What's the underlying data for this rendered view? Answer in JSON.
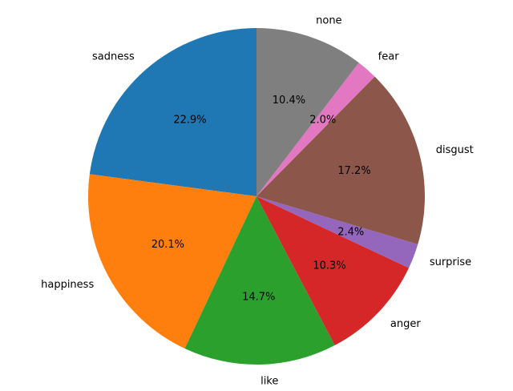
{
  "chart_data": {
    "type": "pie",
    "start_angle": 90,
    "direction": "counterclockwise",
    "slices": [
      {
        "label": "sadness",
        "value": 22.9,
        "pct_text": "22.9%",
        "color": "#1f77b4"
      },
      {
        "label": "happiness",
        "value": 20.1,
        "pct_text": "20.1%",
        "color": "#ff7f0e"
      },
      {
        "label": "like",
        "value": 14.7,
        "pct_text": "14.7%",
        "color": "#2ca02c"
      },
      {
        "label": "anger",
        "value": 10.3,
        "pct_text": "10.3%",
        "color": "#d62728"
      },
      {
        "label": "surprise",
        "value": 2.4,
        "pct_text": "2.4%",
        "color": "#9467bd"
      },
      {
        "label": "disgust",
        "value": 17.2,
        "pct_text": "17.2%",
        "color": "#8c564b"
      },
      {
        "label": "fear",
        "value": 2.0,
        "pct_text": "2.0%",
        "color": "#e377c2"
      },
      {
        "label": "none",
        "value": 10.4,
        "pct_text": "10.4%",
        "color": "#7f7f7f"
      }
    ]
  }
}
